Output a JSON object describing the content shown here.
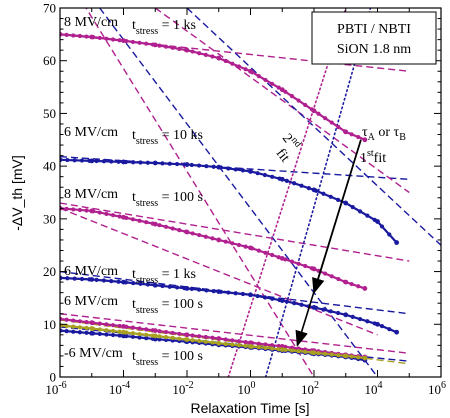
{
  "chart_data": {
    "type": "scatter",
    "xlabel": "Relaxation Time [s]",
    "ylabel": "-ΔV_th [mV]",
    "xscale": "log",
    "xlim": [
      1e-06,
      1000000.0
    ],
    "ylim": [
      0,
      70
    ],
    "xticks": [
      {
        "value": 1e-06,
        "base": "10",
        "exp": "-6"
      },
      {
        "value": 0.0001,
        "base": "10",
        "exp": "-4"
      },
      {
        "value": 0.01,
        "base": "10",
        "exp": "-2"
      },
      {
        "value": 1,
        "base": "10",
        "exp": "0"
      },
      {
        "value": 100,
        "base": "10",
        "exp": "2"
      },
      {
        "value": 10000.0,
        "base": "10",
        "exp": "4"
      },
      {
        "value": 1000000.0,
        "base": "10",
        "exp": "6"
      }
    ],
    "yticks": [
      0,
      10,
      20,
      30,
      40,
      50,
      60,
      70
    ],
    "legend": {
      "line1": "PBTI / NBTI",
      "line2": "SiON  1.8 nm",
      "placement": "top-right"
    },
    "colors": {
      "magenta": "#b0208f",
      "blue": "#1a1aa0",
      "olive": "#a8a020"
    },
    "series": [
      {
        "color": "magenta",
        "label_field": "8 MV/cm",
        "label_stress": "= 1 ks",
        "x": [
          1e-06,
          1e-05,
          0.0001,
          0.001,
          0.01,
          0.1,
          1,
          10,
          100,
          1000,
          4000
        ],
        "y": [
          65,
          64.5,
          63.8,
          63,
          62,
          60.5,
          58,
          54.5,
          50.5,
          46.5,
          45
        ]
      },
      {
        "color": "blue",
        "label_field": "6 MV/cm",
        "label_stress": "= 10 ks",
        "x": [
          1e-06,
          1e-05,
          0.0001,
          0.001,
          0.01,
          0.1,
          1,
          10,
          100,
          1000,
          10000.0,
          40000.0
        ],
        "y": [
          41.2,
          41,
          40.8,
          40.6,
          40.3,
          39.8,
          39,
          37.5,
          35.5,
          33,
          29.5,
          25.5
        ]
      },
      {
        "color": "magenta",
        "label_field": "8 MV/cm",
        "label_stress": "= 100 s",
        "x": [
          1e-06,
          1e-05,
          0.0001,
          0.001,
          0.01,
          0.1,
          1,
          10,
          100,
          1000,
          4000
        ],
        "y": [
          32,
          31.5,
          30.3,
          29,
          27.5,
          26,
          24.5,
          22.5,
          20.5,
          18,
          16.8
        ]
      },
      {
        "color": "blue",
        "label_field": "6 MV/cm",
        "label_stress": "= 1 ks",
        "x": [
          1e-06,
          1e-05,
          0.0001,
          0.001,
          0.01,
          0.1,
          1,
          10,
          100,
          1000,
          10000.0,
          40000.0
        ],
        "y": [
          18.8,
          18.5,
          18,
          17.4,
          16.8,
          16.2,
          15.6,
          14.5,
          13.2,
          11.8,
          10,
          8.5
        ]
      },
      {
        "color": "magenta",
        "label_field": "6 MV/cm",
        "label_stress": "= 100 s",
        "x": [
          1e-06,
          1e-05,
          0.0001,
          0.001,
          0.01,
          0.1,
          1,
          10,
          100,
          1000,
          4000
        ],
        "y": [
          11,
          10.3,
          9.6,
          8.8,
          8,
          7.3,
          6.5,
          5.8,
          5,
          4.2,
          3.8
        ]
      },
      {
        "color": "blue",
        "label_field": "6 MV/cm",
        "label_stress": "= 100 s",
        "x": [
          1e-06,
          1e-05,
          0.0001,
          0.001,
          0.01,
          0.1,
          1,
          10,
          100,
          1000,
          4000
        ],
        "y": [
          8.8,
          8.3,
          7.8,
          7.2,
          6.7,
          6.1,
          5.6,
          5,
          4.4,
          3.8,
          3.2
        ]
      },
      {
        "color": "olive",
        "label_field": "-6 MV/cm",
        "label_stress": "= 100 s",
        "x": [
          1e-06,
          1e-05,
          0.0001,
          0.001,
          0.01,
          0.1,
          1,
          10,
          100,
          1000,
          4000
        ],
        "y": [
          9.8,
          9.2,
          8.5,
          7.8,
          7.1,
          6.4,
          5.8,
          5.2,
          4.6,
          4,
          3.6
        ]
      }
    ],
    "fits": [
      {
        "color": "magenta",
        "x": [
          1e-06,
          100000.0
        ],
        "y": [
          65,
          58
        ]
      },
      {
        "color": "blue",
        "x": [
          1e-06,
          100000.0
        ],
        "y": [
          41.8,
          37.5
        ]
      },
      {
        "color": "magenta",
        "x": [
          1e-06,
          100000.0
        ],
        "y": [
          33,
          22
        ]
      },
      {
        "color": "blue",
        "x": [
          1e-06,
          100000.0
        ],
        "y": [
          20,
          12
        ]
      },
      {
        "color": "magenta",
        "x": [
          1e-06,
          100000.0
        ],
        "y": [
          12,
          4.5
        ]
      },
      {
        "color": "blue",
        "x": [
          1e-06,
          100000.0
        ],
        "y": [
          9.5,
          3
        ]
      },
      {
        "color": "olive",
        "x": [
          1e-06,
          100000.0
        ],
        "y": [
          10.8,
          2.5
        ]
      },
      {
        "color": "magenta",
        "x": [
          1e-06,
          100
        ],
        "y": [
          78,
          0
        ]
      },
      {
        "color": "blue",
        "x": [
          1e-06,
          10000.0
        ],
        "y": [
          80,
          0
        ]
      },
      {
        "color": "magenta",
        "x": [
          0.001,
          100000.0
        ],
        "y": [
          70,
          35
        ]
      },
      {
        "color": "blue",
        "x": [
          0.01,
          1000000.0
        ],
        "y": [
          70,
          25
        ]
      },
      {
        "color": "magenta",
        "x": [
          1e-06,
          10000.0
        ],
        "y": [
          32,
          8
        ]
      }
    ],
    "tau_lines": [
      {
        "color": "magenta",
        "style": "dotted",
        "x": [
          0.2,
          1000
        ],
        "y": [
          0,
          70
        ]
      },
      {
        "color": "blue",
        "style": "dotted",
        "x": [
          3,
          6000
        ],
        "y": [
          0,
          70
        ]
      }
    ],
    "annotations": {
      "fit2_base": "2",
      "fit2_sup": "nd",
      "fit2_word": "fit",
      "fit1_base": "1",
      "fit1_sup": "st",
      "fit1_word": "fit",
      "tau_a": "τ",
      "tau_a_sub": "A",
      "tau_or": " or ",
      "tau_b": "τ",
      "tau_b_sub": "B",
      "t_letter": "t",
      "stress_sub": "stress"
    },
    "arrows": [
      {
        "from": [
          3000,
          45
        ],
        "to": [
          100,
          16
        ]
      },
      {
        "from": [
          3000,
          45
        ],
        "to": [
          30,
          6
        ]
      }
    ]
  }
}
